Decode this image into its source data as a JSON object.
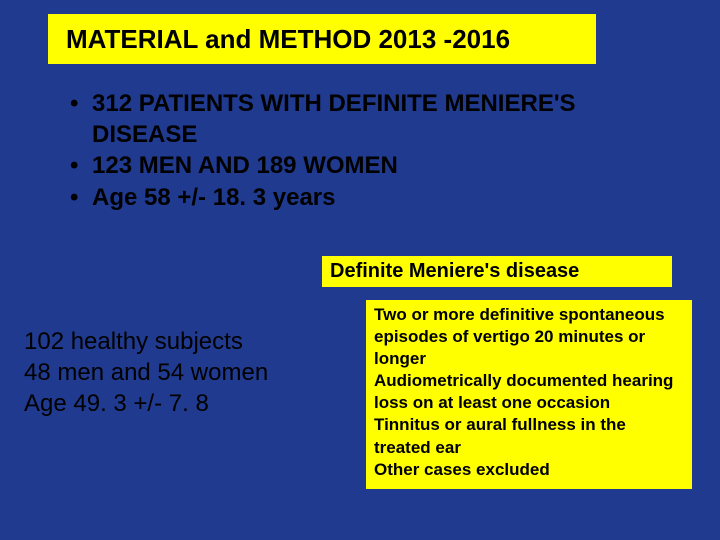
{
  "title": "MATERIAL and METHOD 2013 -2016",
  "bullets": [
    "312 PATIENTS WITH DEFINITE MENIERE'S DISEASE",
    "123 MEN AND 189 WOMEN",
    "Age 58 +/- 18. 3 years"
  ],
  "healthy": {
    "line1": "102 healthy subjects",
    "line2": "48 men and 54 women",
    "line3": "Age 49. 3 +/- 7. 8"
  },
  "definition_title": "Definite Meniere's disease",
  "criteria": [
    "Two or more definitive spontaneous episodes of vertigo 20 minutes or longer",
    "Audiometrically documented hearing loss on at least one occasion",
    "Tinnitus or aural fullness in the treated ear",
    "Other cases excluded"
  ],
  "colors": {
    "background": "#1f3a8f",
    "highlight": "#ffff00",
    "text": "#000000"
  }
}
